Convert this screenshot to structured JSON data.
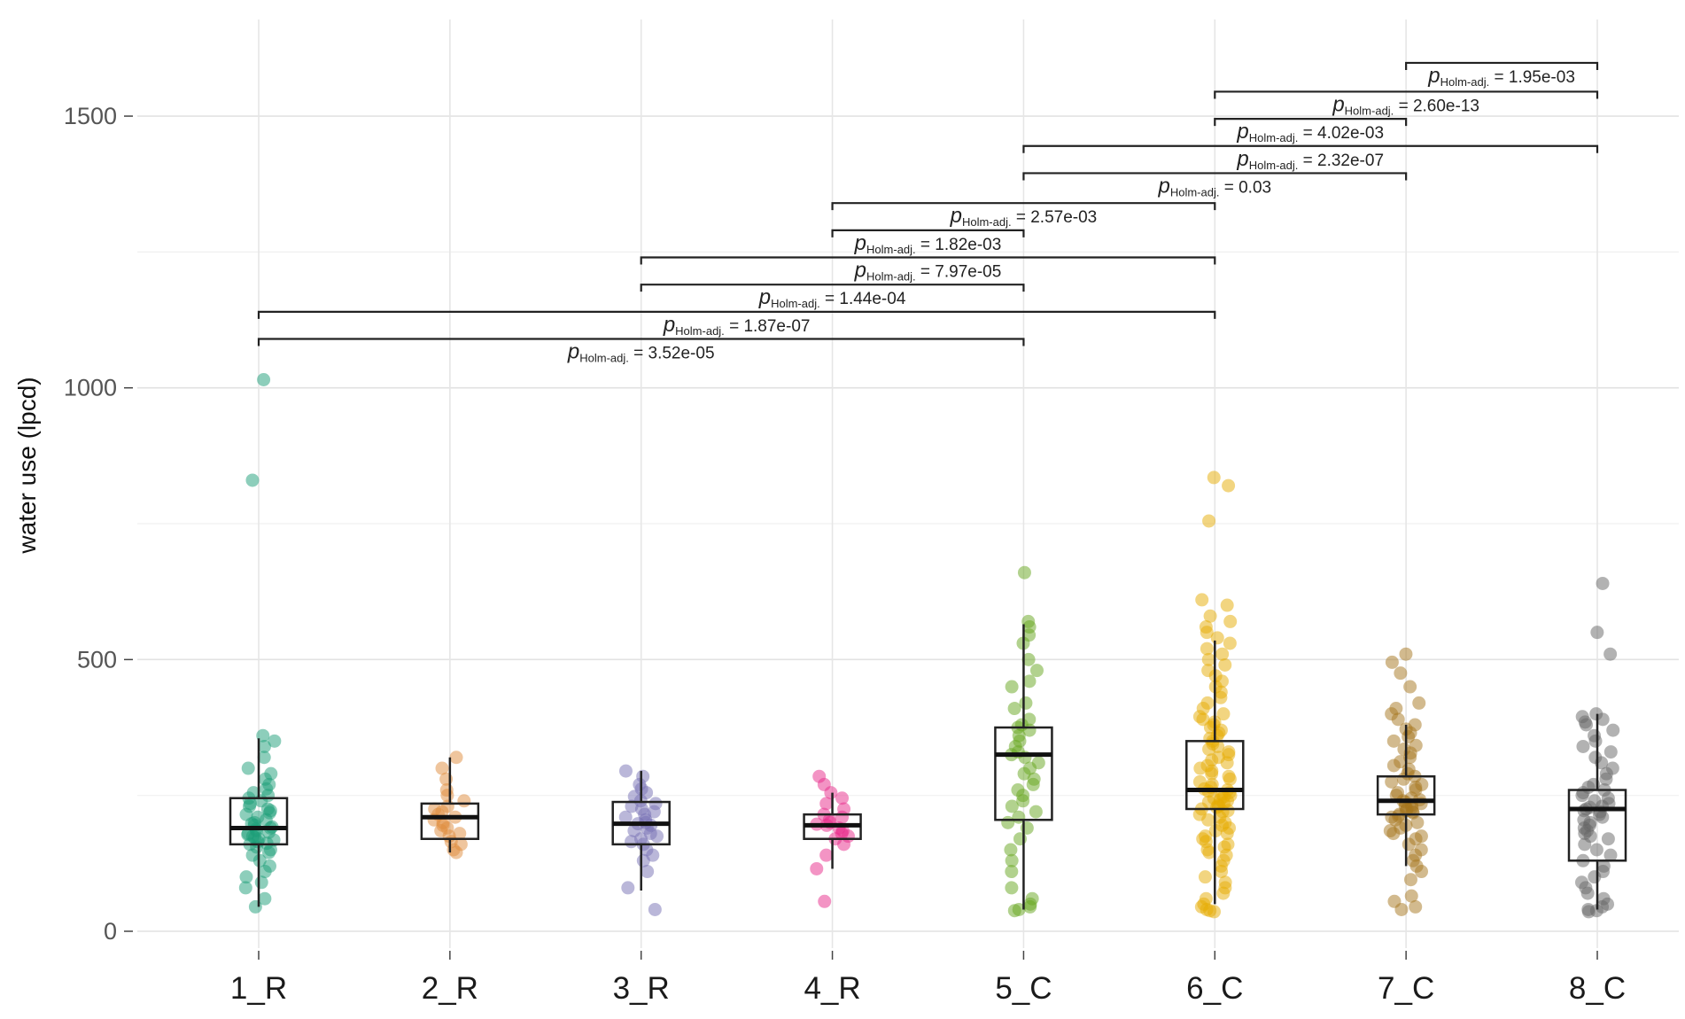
{
  "chart_data": {
    "type": "box",
    "title": "",
    "xlabel": "",
    "ylabel": "water use (lpcd)",
    "ylim": [
      -30,
      1690
    ],
    "yticks": [
      0,
      500,
      1000,
      1500
    ],
    "ytick_labels": [
      "0",
      "500",
      "1000",
      "1500"
    ],
    "grid": true,
    "categories": [
      "1_R",
      "2_R",
      "3_R",
      "4_R",
      "5_C",
      "6_C",
      "7_C",
      "8_C"
    ],
    "colors": [
      "#1b9e77",
      "#e08b3c",
      "#7570b3",
      "#e7298a",
      "#66a61e",
      "#e6ab02",
      "#a6761d",
      "#666666"
    ],
    "boxes": [
      {
        "group": "1_R",
        "lower_whisker": 45,
        "q1": 160,
        "median": 190,
        "q3": 245,
        "upper_whisker": 355
      },
      {
        "group": "2_R",
        "lower_whisker": 145,
        "q1": 170,
        "median": 210,
        "q3": 235,
        "upper_whisker": 320
      },
      {
        "group": "3_R",
        "lower_whisker": 75,
        "q1": 160,
        "median": 198,
        "q3": 238,
        "upper_whisker": 295
      },
      {
        "group": "4_R",
        "lower_whisker": 115,
        "q1": 170,
        "median": 195,
        "q3": 215,
        "upper_whisker": 255
      },
      {
        "group": "5_C",
        "lower_whisker": 40,
        "q1": 205,
        "median": 325,
        "q3": 375,
        "upper_whisker": 565
      },
      {
        "group": "6_C",
        "lower_whisker": 50,
        "q1": 225,
        "median": 260,
        "q3": 350,
        "upper_whisker": 535
      },
      {
        "group": "7_C",
        "lower_whisker": 120,
        "q1": 215,
        "median": 240,
        "q3": 285,
        "upper_whisker": 380
      },
      {
        "group": "8_C",
        "lower_whisker": 40,
        "q1": 130,
        "median": 225,
        "q3": 260,
        "upper_whisker": 400
      }
    ],
    "points": [
      {
        "group": "1_R",
        "values": [
          1015,
          830,
          360,
          350,
          340,
          320,
          300,
          290,
          280,
          270,
          262,
          255,
          250,
          245,
          240,
          235,
          230,
          225,
          222,
          218,
          215,
          210,
          205,
          200,
          198,
          195,
          192,
          190,
          188,
          185,
          182,
          180,
          178,
          175,
          172,
          170,
          168,
          165,
          162,
          160,
          155,
          150,
          145,
          140,
          130,
          120,
          110,
          100,
          90,
          80,
          60,
          45
        ]
      },
      {
        "group": "2_R",
        "values": [
          320,
          300,
          280,
          260,
          250,
          240,
          230,
          225,
          220,
          215,
          210,
          205,
          200,
          195,
          190,
          185,
          180,
          175,
          165,
          160,
          150,
          145
        ]
      },
      {
        "group": "3_R",
        "values": [
          295,
          285,
          270,
          262,
          255,
          248,
          240,
          235,
          230,
          225,
          220,
          215,
          210,
          205,
          200,
          198,
          195,
          190,
          185,
          180,
          175,
          170,
          165,
          160,
          150,
          140,
          130,
          110,
          80,
          40
        ]
      },
      {
        "group": "4_R",
        "values": [
          285,
          270,
          255,
          245,
          235,
          225,
          215,
          210,
          205,
          200,
          197,
          195,
          190,
          185,
          180,
          175,
          170,
          160,
          140,
          115,
          55
        ]
      },
      {
        "group": "5_C",
        "values": [
          660,
          570,
          560,
          545,
          530,
          500,
          480,
          460,
          450,
          420,
          410,
          390,
          380,
          375,
          370,
          360,
          350,
          340,
          330,
          325,
          320,
          310,
          300,
          290,
          280,
          270,
          260,
          250,
          240,
          230,
          220,
          210,
          200,
          190,
          170,
          150,
          130,
          110,
          80,
          60,
          50,
          45,
          40,
          38
        ]
      },
      {
        "group": "6_C",
        "values": [
          835,
          820,
          755,
          610,
          600,
          580,
          570,
          560,
          550,
          540,
          530,
          520,
          510,
          500,
          490,
          480,
          470,
          460,
          450,
          440,
          430,
          420,
          410,
          400,
          395,
          390,
          385,
          380,
          375,
          370,
          365,
          360,
          355,
          350,
          345,
          340,
          335,
          330,
          325,
          320,
          315,
          310,
          305,
          300,
          295,
          290,
          285,
          280,
          275,
          270,
          265,
          262,
          260,
          258,
          255,
          252,
          250,
          248,
          245,
          242,
          240,
          238,
          235,
          232,
          230,
          228,
          225,
          222,
          220,
          215,
          210,
          205,
          200,
          195,
          190,
          185,
          180,
          175,
          170,
          165,
          160,
          155,
          150,
          145,
          140,
          130,
          120,
          110,
          100,
          90,
          80,
          70,
          60,
          50,
          45,
          40,
          38,
          36
        ]
      },
      {
        "group": "7_C",
        "values": [
          510,
          495,
          475,
          450,
          420,
          410,
          400,
          390,
          380,
          372,
          365,
          358,
          350,
          342,
          335,
          328,
          320,
          312,
          305,
          298,
          290,
          285,
          280,
          275,
          270,
          265,
          260,
          255,
          250,
          245,
          242,
          240,
          238,
          235,
          232,
          230,
          228,
          225,
          222,
          220,
          218,
          215,
          212,
          210,
          205,
          200,
          195,
          190,
          185,
          180,
          175,
          170,
          160,
          150,
          140,
          130,
          120,
          110,
          95,
          65,
          55,
          45,
          40
        ]
      },
      {
        "group": "8_C",
        "values": [
          640,
          550,
          510,
          400,
          395,
          390,
          385,
          380,
          370,
          360,
          350,
          340,
          330,
          320,
          310,
          300,
          290,
          280,
          270,
          265,
          260,
          255,
          250,
          245,
          240,
          235,
          230,
          228,
          225,
          222,
          220,
          215,
          210,
          205,
          200,
          195,
          190,
          185,
          180,
          175,
          170,
          160,
          150,
          140,
          130,
          120,
          110,
          100,
          90,
          80,
          70,
          60,
          50,
          45,
          40,
          38,
          36
        ]
      }
    ],
    "comparisons": [
      {
        "group1": "1_R",
        "group2": "5_C",
        "label_prefix": "p",
        "label_sub": "Holm-adj.",
        "label_value": "= 3.52e-05",
        "y": 1090
      },
      {
        "group1": "1_R",
        "group2": "6_C",
        "label_prefix": "p",
        "label_sub": "Holm-adj.",
        "label_value": "= 1.87e-07",
        "y": 1140
      },
      {
        "group1": "3_R",
        "group2": "5_C",
        "label_prefix": "p",
        "label_sub": "Holm-adj.",
        "label_value": "= 1.44e-04",
        "y": 1190
      },
      {
        "group1": "3_R",
        "group2": "6_C",
        "label_prefix": "p",
        "label_sub": "Holm-adj.",
        "label_value": "= 7.97e-05",
        "y": 1240
      },
      {
        "group1": "4_R",
        "group2": "5_C",
        "label_prefix": "p",
        "label_sub": "Holm-adj.",
        "label_value": "= 1.82e-03",
        "y": 1290
      },
      {
        "group1": "4_R",
        "group2": "6_C",
        "label_prefix": "p",
        "label_sub": "Holm-adj.",
        "label_value": "= 2.57e-03",
        "y": 1340
      },
      {
        "group1": "5_C",
        "group2": "7_C",
        "label_prefix": "p",
        "label_sub": "Holm-adj.",
        "label_value": "= 0.03",
        "y": 1395
      },
      {
        "group1": "5_C",
        "group2": "8_C",
        "label_prefix": "p",
        "label_sub": "Holm-adj.",
        "label_value": "= 2.32e-07",
        "y": 1445
      },
      {
        "group1": "6_C",
        "group2": "7_C",
        "label_prefix": "p",
        "label_sub": "Holm-adj.",
        "label_value": "= 4.02e-03",
        "y": 1495
      },
      {
        "group1": "6_C",
        "group2": "8_C",
        "label_prefix": "p",
        "label_sub": "Holm-adj.",
        "label_value": "= 2.60e-13",
        "y": 1545
      },
      {
        "group1": "7_C",
        "group2": "8_C",
        "label_prefix": "p",
        "label_sub": "Holm-adj.",
        "label_value": "= 1.95e-03",
        "y": 1598
      }
    ]
  }
}
